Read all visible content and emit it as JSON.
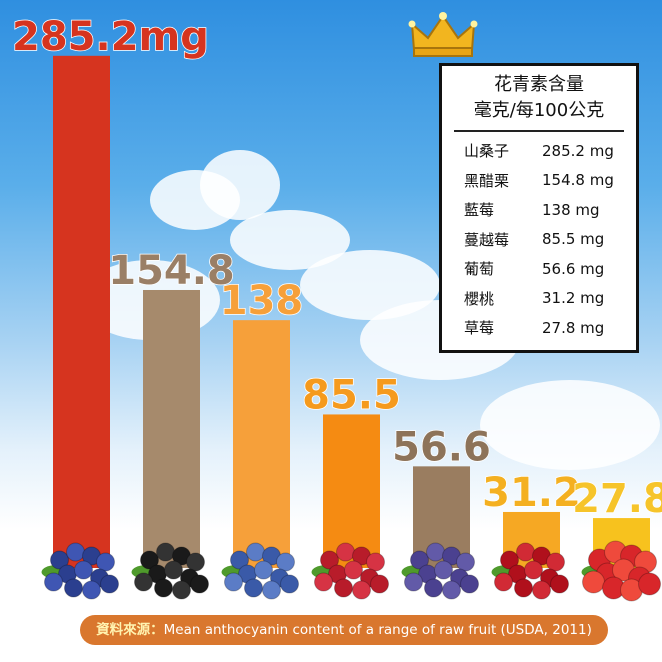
{
  "chart_data": {
    "type": "bar",
    "categories": [
      "山桑子",
      "黑醋栗",
      "藍莓",
      "蔓越莓",
      "葡萄",
      "櫻桃",
      "草莓"
    ],
    "values": [
      285.2,
      154.8,
      138,
      85.5,
      56.6,
      31.2,
      27.8
    ],
    "value_labels": [
      "285.2mg",
      "154.8",
      "138",
      "85.5",
      "56.6",
      "31.2",
      "27.8"
    ],
    "bar_colors": [
      "#d6341f",
      "#a68a6c",
      "#f6a03a",
      "#f58b12",
      "#9a7d60",
      "#f6a823",
      "#f7c21e"
    ],
    "label_colors": [
      "#d6341f",
      "#9a7f66",
      "#f6a03a",
      "#f59a1d",
      "#8d7359",
      "#f4b021",
      "#f6c42a"
    ],
    "ylim": [
      0,
      300
    ],
    "grid": false
  },
  "legend": {
    "title_line1": "花青素含量",
    "title_line2": "毫克/每100公克",
    "rows": [
      {
        "name": "山桑子",
        "value": "285.2 mg"
      },
      {
        "name": "黑醋栗",
        "value": "154.8 mg"
      },
      {
        "name": "藍莓",
        "value": "138 mg"
      },
      {
        "name": "蔓越莓",
        "value": "85.5 mg"
      },
      {
        "name": "葡萄",
        "value": "56.6 mg"
      },
      {
        "name": "櫻桃",
        "value": "31.2 mg"
      },
      {
        "name": "草莓",
        "value": "27.8 mg"
      }
    ]
  },
  "footer": {
    "prefix": "資料來源：",
    "text": "Mean anthocyanin content of a range of raw fruit (USDA, 2011)"
  },
  "icons": {
    "crown": "crown-icon",
    "fruits": [
      "bilberry-icon",
      "blackcurrant-icon",
      "blueberry-icon",
      "cranberry-icon",
      "grape-icon",
      "cherry-icon",
      "strawberry-icon"
    ]
  }
}
